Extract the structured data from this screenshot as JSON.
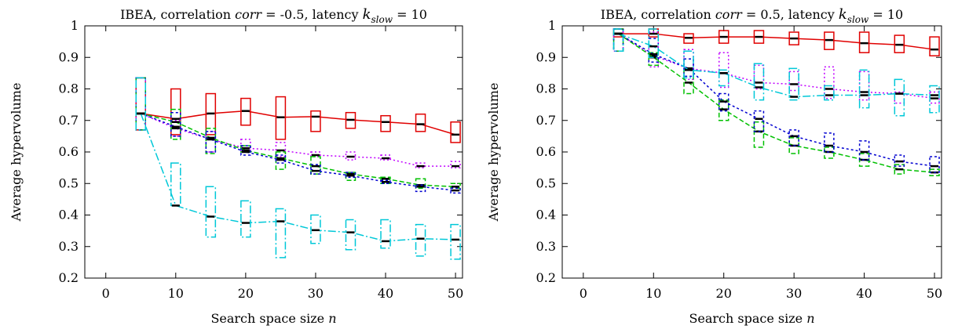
{
  "series_styles": [
    {
      "color": "#e00000",
      "dash": ""
    },
    {
      "color": "#c000ff",
      "dash": "2,3"
    },
    {
      "color": "#00c000",
      "dash": "6,3"
    },
    {
      "color": "#0000d0",
      "dash": "3,3"
    },
    {
      "color": "#00c8d8",
      "dash": "10,3,2,3"
    }
  ],
  "chart_data": [
    {
      "type": "line",
      "title_parts": [
        "IBEA, correlation ",
        "corr",
        " = -0.5, latency ",
        "k",
        "slow",
        " = 10"
      ],
      "xlabel_parts": [
        "Search space size ",
        "n"
      ],
      "ylabel": "Average hypervolume",
      "xlim": [
        -3,
        51
      ],
      "ylim": [
        0.2,
        1.0
      ],
      "xticks": [
        0,
        10,
        20,
        30,
        40,
        50
      ],
      "yticks": [
        0.2,
        0.3,
        0.4,
        0.5,
        0.6,
        0.7,
        0.8,
        0.9,
        1.0
      ],
      "x": [
        5,
        10,
        15,
        20,
        25,
        30,
        35,
        40,
        45,
        50
      ],
      "series": [
        {
          "values": [
            0.722,
            0.705,
            0.722,
            0.73,
            0.71,
            0.712,
            0.702,
            0.695,
            0.688,
            0.655
          ],
          "box_low": [
            0.67,
            0.655,
            0.655,
            0.685,
            0.64,
            0.665,
            0.675,
            0.665,
            0.665,
            0.63
          ],
          "box_high": [
            0.835,
            0.8,
            0.785,
            0.77,
            0.775,
            0.73,
            0.725,
            0.715,
            0.72,
            0.695
          ]
        },
        {
          "values": [
            0.722,
            0.675,
            0.64,
            0.612,
            0.605,
            0.59,
            0.585,
            0.58,
            0.555,
            0.555
          ],
          "box_low": [
            0.67,
            0.65,
            0.6,
            0.6,
            0.585,
            0.585,
            0.575,
            0.575,
            0.55,
            0.55
          ],
          "box_high": [
            0.835,
            0.7,
            0.665,
            0.64,
            0.63,
            0.6,
            0.6,
            0.59,
            0.565,
            0.57
          ]
        },
        {
          "values": [
            0.722,
            0.695,
            0.645,
            0.605,
            0.58,
            0.555,
            0.53,
            0.515,
            0.495,
            0.49
          ],
          "box_low": [
            0.67,
            0.64,
            0.595,
            0.6,
            0.545,
            0.53,
            0.51,
            0.5,
            0.485,
            0.485
          ],
          "box_high": [
            0.835,
            0.735,
            0.675,
            0.62,
            0.6,
            0.585,
            0.535,
            0.52,
            0.515,
            0.5
          ]
        },
        {
          "values": [
            0.722,
            0.68,
            0.64,
            0.6,
            0.575,
            0.54,
            0.525,
            0.505,
            0.49,
            0.478
          ],
          "box_low": [
            0.67,
            0.65,
            0.6,
            0.59,
            0.565,
            0.53,
            0.52,
            0.5,
            0.475,
            0.47
          ],
          "box_high": [
            0.835,
            0.725,
            0.665,
            0.62,
            0.59,
            0.56,
            0.535,
            0.51,
            0.495,
            0.485
          ]
        },
        {
          "values": [
            0.722,
            0.43,
            0.395,
            0.375,
            0.38,
            0.352,
            0.345,
            0.317,
            0.325,
            0.322
          ],
          "box_low": [
            0.67,
            0.43,
            0.33,
            0.33,
            0.265,
            0.31,
            0.29,
            0.295,
            0.27,
            0.26
          ],
          "box_high": [
            0.835,
            0.565,
            0.49,
            0.445,
            0.42,
            0.4,
            0.385,
            0.385,
            0.37,
            0.37
          ]
        }
      ]
    },
    {
      "type": "line",
      "title_parts": [
        "IBEA, correlation ",
        "corr",
        " = 0.5, latency ",
        "k",
        "slow",
        " = 10"
      ],
      "xlabel_parts": [
        "Search space size ",
        "n"
      ],
      "ylabel": "Average hypervolume",
      "xlim": [
        -3,
        51
      ],
      "ylim": [
        0.2,
        1.0
      ],
      "xticks": [
        0,
        10,
        20,
        30,
        40,
        50
      ],
      "yticks": [
        0.2,
        0.3,
        0.4,
        0.5,
        0.6,
        0.7,
        0.8,
        0.9,
        1.0
      ],
      "x": [
        5,
        10,
        15,
        20,
        25,
        30,
        35,
        40,
        45,
        50
      ],
      "series": [
        {
          "values": [
            0.975,
            0.975,
            0.962,
            0.965,
            0.965,
            0.96,
            0.955,
            0.945,
            0.94,
            0.925
          ],
          "box_low": [
            0.965,
            0.965,
            0.945,
            0.945,
            0.945,
            0.94,
            0.925,
            0.915,
            0.915,
            0.905
          ],
          "box_high": [
            0.99,
            0.99,
            0.975,
            0.985,
            0.985,
            0.98,
            0.98,
            0.98,
            0.97,
            0.965
          ]
        },
        {
          "values": [
            0.975,
            0.905,
            0.865,
            0.85,
            0.82,
            0.815,
            0.8,
            0.79,
            0.785,
            0.77
          ],
          "box_low": [
            0.92,
            0.87,
            0.83,
            0.805,
            0.8,
            0.795,
            0.77,
            0.765,
            0.755,
            0.755
          ],
          "box_high": [
            0.99,
            0.98,
            0.925,
            0.915,
            0.875,
            0.855,
            0.87,
            0.855,
            0.79,
            0.79
          ]
        },
        {
          "values": [
            0.975,
            0.9,
            0.82,
            0.735,
            0.665,
            0.62,
            0.6,
            0.575,
            0.545,
            0.535
          ],
          "box_low": [
            0.92,
            0.875,
            0.785,
            0.7,
            0.615,
            0.595,
            0.58,
            0.555,
            0.53,
            0.525
          ],
          "box_high": [
            0.99,
            0.915,
            0.86,
            0.765,
            0.695,
            0.645,
            0.615,
            0.595,
            0.56,
            0.545
          ]
        },
        {
          "values": [
            0.975,
            0.91,
            0.865,
            0.76,
            0.705,
            0.65,
            0.62,
            0.6,
            0.57,
            0.555
          ],
          "box_low": [
            0.92,
            0.885,
            0.84,
            0.73,
            0.665,
            0.62,
            0.6,
            0.575,
            0.555,
            0.535
          ],
          "box_high": [
            0.99,
            0.96,
            0.895,
            0.785,
            0.73,
            0.67,
            0.66,
            0.635,
            0.59,
            0.585
          ]
        },
        {
          "values": [
            0.975,
            0.935,
            0.86,
            0.85,
            0.805,
            0.775,
            0.78,
            0.78,
            0.785,
            0.78
          ],
          "box_low": [
            0.92,
            0.9,
            0.835,
            0.81,
            0.765,
            0.765,
            0.765,
            0.74,
            0.715,
            0.725
          ],
          "box_high": [
            0.99,
            0.99,
            0.92,
            0.86,
            0.88,
            0.865,
            0.81,
            0.86,
            0.83,
            0.81
          ]
        }
      ]
    }
  ]
}
